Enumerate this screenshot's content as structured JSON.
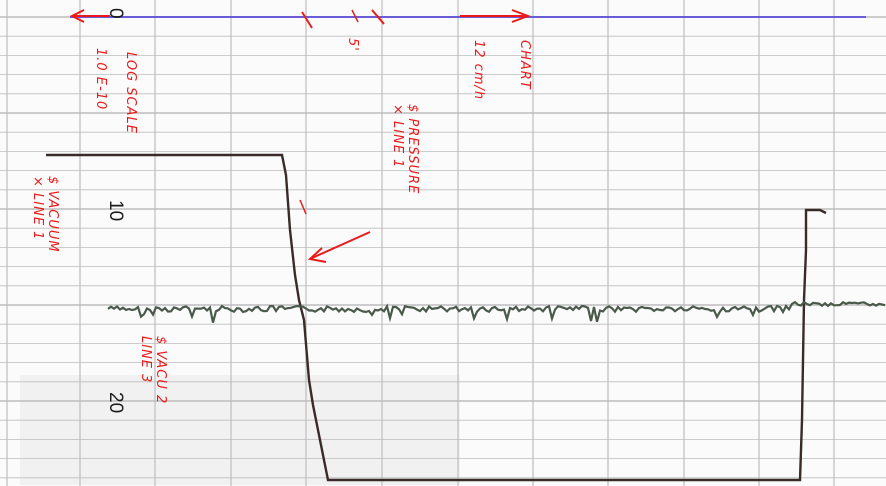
{
  "colors": {
    "paper": "#fbfbfb",
    "grid": "#bdbdbd",
    "pressure_trace": "#3a2a2a",
    "vacuum_trace": "#4a5a4a",
    "zero_line": "#6a5cd6",
    "annotation": "#ea1a1a"
  },
  "scale_labels": {
    "zero": "0",
    "ten": "10",
    "twenty": "20"
  },
  "annotations": {
    "log_scale": "LOG SCALE",
    "log_range": "1.0 E-10",
    "chart": "CHART",
    "chart_speed": "12 cm/h",
    "tick_label": "5'",
    "pressure_line1": "$ PRESSURE",
    "pressure_line2": "× LINE 1",
    "vacuum_line1": "$ VACUUM",
    "vacuum_line2": "× LINE 1",
    "vacuum_line3": "$ VACU 2",
    "vacuum_line4": "LINE 3"
  }
}
